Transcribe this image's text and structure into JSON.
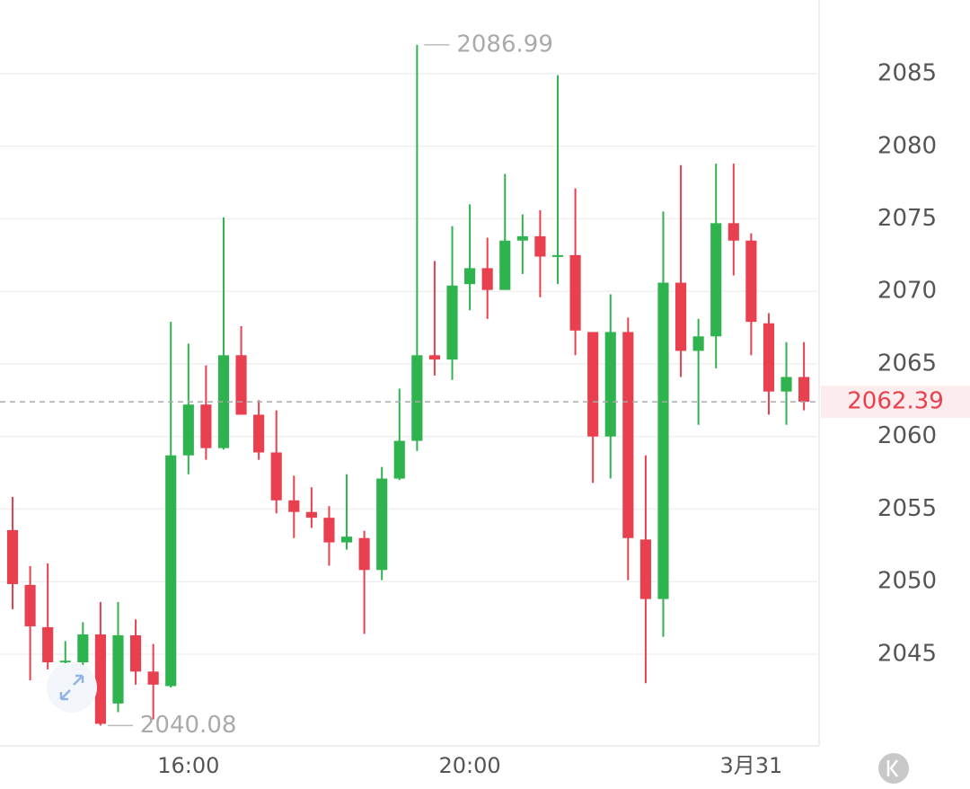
{
  "chart_data": {
    "type": "candlestick",
    "open": [
      2053.55,
      2049.77,
      2046.86,
      2044.5,
      2044.44,
      2046.36,
      2041.6,
      2046.3,
      2043.8,
      2042.8,
      2058.7,
      2062.2,
      2059.2,
      2065.6,
      2061.5,
      2058.9,
      2055.6,
      2054.8,
      2054.4,
      2052.7,
      2053.0,
      2050.8,
      2057.1,
      2059.7,
      2065.6,
      2065.3,
      2070.5,
      2071.6,
      2070.1,
      2073.5,
      2073.8,
      2072.4,
      2072.5,
      2067.2,
      2060.0,
      2067.2,
      2052.9,
      2048.8,
      2070.6,
      2065.9,
      2066.9,
      2074.7,
      2073.5,
      2067.8,
      2063.1,
      2064.1
    ],
    "high": [
      2055.84,
      2051.07,
      2051.25,
      2045.9,
      2047.2,
      2048.6,
      2048.6,
      2047.4,
      2045.7,
      2067.9,
      2066.4,
      2064.9,
      2075.1,
      2067.6,
      2062.5,
      2061.8,
      2057.3,
      2056.5,
      2055.2,
      2057.4,
      2053.5,
      2057.9,
      2063.3,
      2086.99,
      2072.1,
      2074.5,
      2076.0,
      2073.7,
      2078.1,
      2075.3,
      2075.6,
      2084.9,
      2077.1,
      2067.2,
      2069.8,
      2068.2,
      2058.7,
      2075.5,
      2078.7,
      2068.1,
      2078.8,
      2078.8,
      2074.0,
      2068.5,
      2066.5,
      2066.5
    ],
    "low": [
      2048.1,
      2043.2,
      2043.95,
      2042.1,
      2043.6,
      2040.08,
      2041.0,
      2042.9,
      2040.5,
      2042.7,
      2057.4,
      2058.4,
      2059.1,
      2061.5,
      2058.4,
      2054.7,
      2053.0,
      2053.7,
      2051.1,
      2052.2,
      2046.4,
      2050.1,
      2057.0,
      2059.0,
      2064.2,
      2063.9,
      2068.7,
      2068.1,
      2070.1,
      2071.2,
      2069.6,
      2070.5,
      2065.6,
      2056.8,
      2057.1,
      2050.1,
      2043.0,
      2046.2,
      2064.1,
      2060.8,
      2064.7,
      2071.1,
      2065.6,
      2061.5,
      2060.8,
      2061.8
    ],
    "close": [
      2049.83,
      2046.92,
      2044.44,
      2044.55,
      2046.36,
      2040.2,
      2046.3,
      2043.8,
      2042.9,
      2058.7,
      2062.2,
      2059.2,
      2065.6,
      2061.5,
      2058.9,
      2055.6,
      2054.8,
      2054.4,
      2052.7,
      2053.1,
      2050.8,
      2057.1,
      2059.7,
      2065.6,
      2065.3,
      2070.4,
      2071.6,
      2070.1,
      2073.5,
      2073.8,
      2072.4,
      2072.5,
      2067.3,
      2060.0,
      2067.2,
      2053.0,
      2048.8,
      2070.6,
      2065.9,
      2066.9,
      2074.7,
      2073.5,
      2067.9,
      2063.1,
      2064.1,
      2062.39
    ],
    "up_color": "#2fb34f",
    "down_color": "#e8404f",
    "ylim": [
      2038.68,
      2090.08
    ],
    "yticks": [
      2045,
      2050,
      2055,
      2060,
      2065,
      2070,
      2075,
      2080,
      2085
    ],
    "xlim": [
      -0.715,
      45.76
    ],
    "xticks": [
      {
        "value": 10,
        "label": "16:00"
      },
      {
        "value": 26,
        "label": "20:00"
      },
      {
        "value": 42,
        "label": "3月31"
      }
    ],
    "grid": true,
    "annotations": {
      "high": 2086.99,
      "low": 2040.08,
      "last": 2062.39
    }
  }
}
